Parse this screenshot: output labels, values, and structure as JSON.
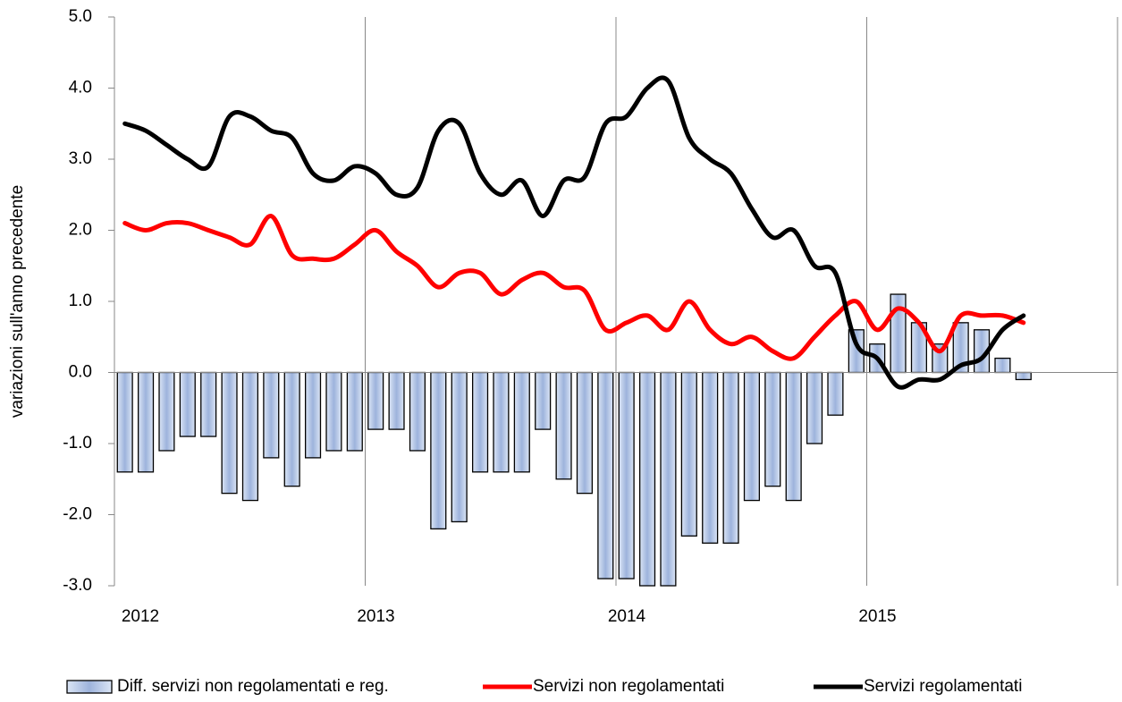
{
  "chart_data": {
    "type": "combo",
    "y_label": "variazioni sull'anno precedente",
    "categories": [
      null,
      null,
      null,
      null,
      null,
      null,
      null,
      null,
      null,
      null,
      null,
      null,
      null,
      null,
      null,
      null,
      null,
      null,
      null,
      null,
      null,
      null,
      null,
      null,
      null,
      null,
      null,
      null,
      null,
      null,
      null,
      null,
      null,
      null,
      null,
      null,
      null,
      null,
      null,
      null,
      null,
      null,
      null,
      null
    ],
    "xlim": [
      2012,
      2016
    ],
    "xticks": [
      2012,
      2013,
      2014,
      2015
    ],
    "ylim": [
      -3,
      5
    ],
    "yticks": [
      {
        "value": -3,
        "label": "-3.0"
      },
      {
        "value": -2,
        "label": "-2.0"
      },
      {
        "value": -1,
        "label": "-1.0"
      },
      {
        "value": 0,
        "label": "0.0"
      },
      {
        "value": 1,
        "label": "1.0"
      },
      {
        "value": 2,
        "label": "2.0"
      },
      {
        "value": 3,
        "label": "3.0"
      },
      {
        "value": 4,
        "label": "4.0"
      },
      {
        "value": 5,
        "label": "5.0"
      }
    ],
    "grid": true,
    "series": [
      {
        "name": "Diff. servizi non regolamentati e reg.",
        "type": "bar",
        "color": "#9db3dc",
        "values": [
          -1.4,
          -1.4,
          -1.1,
          -0.9,
          -0.9,
          -1.7,
          -1.8,
          -1.2,
          -1.6,
          -1.2,
          -1.1,
          -1.1,
          -0.8,
          -0.8,
          -1.1,
          -2.2,
          -2.1,
          -1.4,
          -1.4,
          -1.4,
          -0.8,
          -1.5,
          -1.7,
          -2.9,
          -2.9,
          -3.0,
          -3.0,
          -2.3,
          -2.4,
          -2.4,
          -1.8,
          -1.6,
          -1.8,
          -1.0,
          -0.6,
          0.6,
          0.4,
          1.1,
          0.7,
          0.4,
          0.7,
          0.6,
          0.2,
          -0.1
        ]
      },
      {
        "name": "Servizi non regolamentati",
        "type": "line",
        "color": "#ff0000",
        "values": [
          2.1,
          2.0,
          2.1,
          2.1,
          2.0,
          1.9,
          1.8,
          2.2,
          1.65,
          1.6,
          1.6,
          1.8,
          2.0,
          1.7,
          1.5,
          1.2,
          1.4,
          1.4,
          1.1,
          1.3,
          1.4,
          1.2,
          1.15,
          0.6,
          0.7,
          0.8,
          0.6,
          1.0,
          0.6,
          0.4,
          0.5,
          0.3,
          0.2,
          0.5,
          0.8,
          1.0,
          0.6,
          0.9,
          0.7,
          0.3,
          0.8,
          0.8,
          0.8,
          0.7
        ]
      },
      {
        "name": "Servizi regolamentati",
        "type": "line",
        "color": "#000000",
        "values": [
          3.5,
          3.4,
          3.2,
          3.0,
          2.9,
          3.6,
          3.6,
          3.4,
          3.3,
          2.8,
          2.7,
          2.9,
          2.8,
          2.5,
          2.6,
          3.4,
          3.5,
          2.8,
          2.5,
          2.7,
          2.2,
          2.7,
          2.75,
          3.5,
          3.6,
          4.0,
          4.1,
          3.3,
          3.0,
          2.8,
          2.3,
          1.9,
          2.0,
          1.5,
          1.4,
          0.4,
          0.2,
          -0.2,
          -0.1,
          -0.1,
          0.1,
          0.2,
          0.6,
          0.8
        ]
      }
    ]
  }
}
